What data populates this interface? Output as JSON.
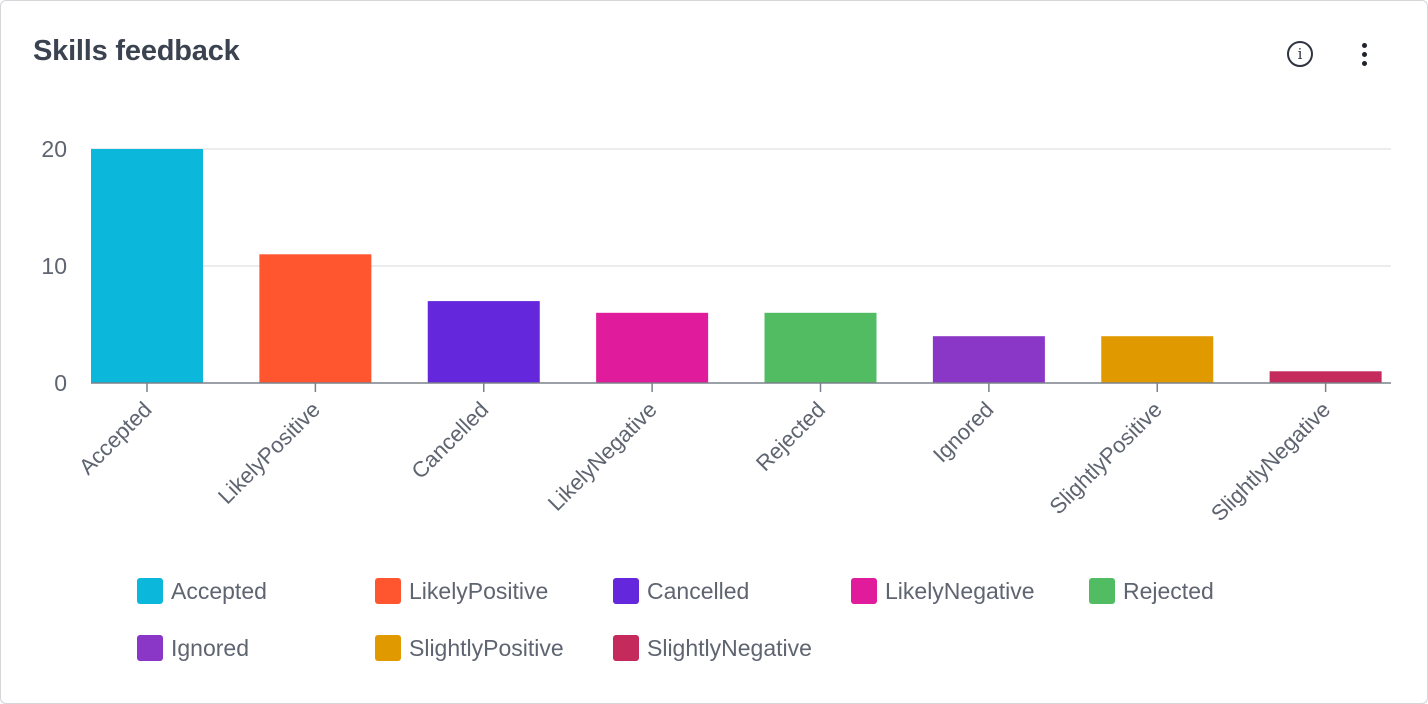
{
  "card": {
    "title": "Skills feedback",
    "info_icon": "info-icon",
    "more_icon": "more-vertical-icon"
  },
  "chart_data": {
    "type": "bar",
    "title": "Skills feedback",
    "xlabel": "",
    "ylabel": "",
    "categories": [
      "Accepted",
      "LikelyPositive",
      "Cancelled",
      "LikelyNegative",
      "Rejected",
      "Ignored",
      "SlightlyPositive",
      "SlightlyNegative"
    ],
    "values": [
      20,
      11,
      7,
      6,
      6,
      4,
      4,
      1
    ],
    "colors": [
      "#0bb8dc",
      "#ff5630",
      "#6427dc",
      "#e01b9c",
      "#52bc63",
      "#8a36c6",
      "#e09a00",
      "#c42b5c"
    ],
    "ylim": [
      0,
      20
    ],
    "yticks": [
      0,
      10,
      20
    ],
    "grid": true,
    "legend_position": "bottom"
  }
}
